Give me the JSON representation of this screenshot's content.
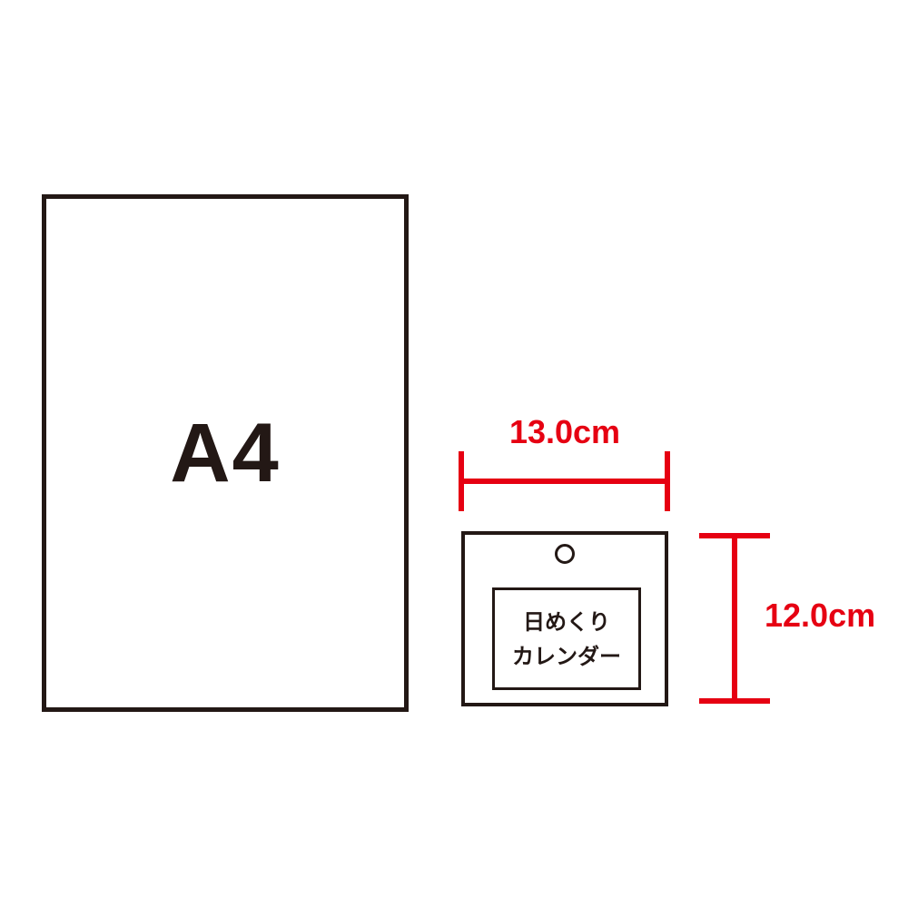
{
  "a4": {
    "label": "A4"
  },
  "calendar": {
    "line1": "日めくり",
    "line2": "カレンダー"
  },
  "dimensions": {
    "width_label": "13.0cm",
    "height_label": "12.0cm"
  },
  "colors": {
    "outline": "#231815",
    "dimension": "#e60012"
  }
}
